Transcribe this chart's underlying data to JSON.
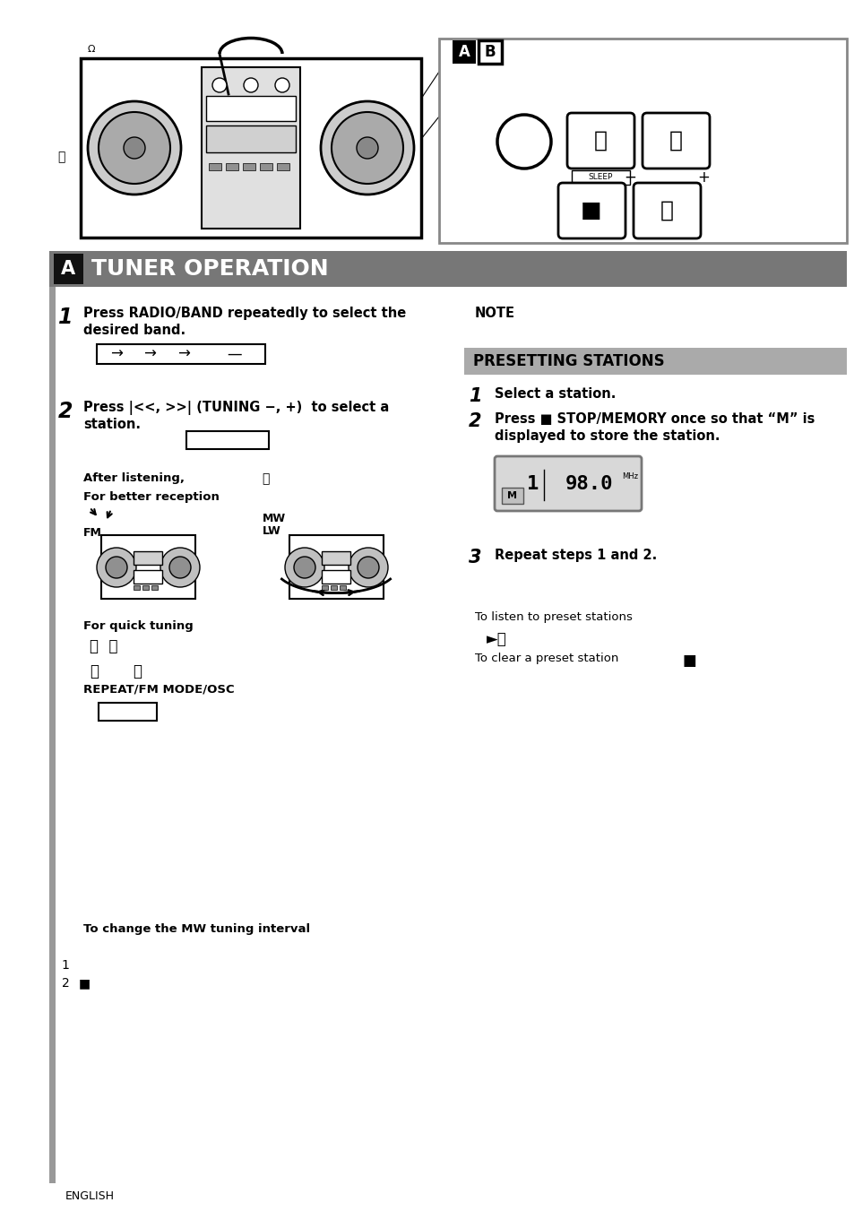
{
  "page_bg": "#ffffff",
  "header_bg": "#777777",
  "header_text": "TUNER OPERATION",
  "header_a_bg": "#111111",
  "preset_header_bg": "#aaaaaa",
  "preset_header_text": "PRESETTING STATIONS",
  "note_label": "NOTE",
  "footer_text": "ENGLISH",
  "step1_line1": "Press RADIO/BAND repeatedly to select the",
  "step1_line2": "desired band.",
  "step2_line1": "Press |<<, >>| (TUNING −, +)  to select a",
  "step2_line2": "station.",
  "after_listening": "After listening,",
  "for_better_reception": "For better reception",
  "fm_label": "FM",
  "mw_lw_label1": "MW",
  "mw_lw_label2": "LW",
  "for_quick_tuning": "For quick tuning",
  "repeat_fm_osc": "REPEAT/FM MODE/OSC",
  "to_change_mw": "To change the MW tuning interval",
  "preset_step1": "Select a station.",
  "preset_step2_1": "Press ■ STOP/MEMORY once so that “M” is",
  "preset_step2_2": "displayed to store the station.",
  "repeat_steps": "Repeat steps 1 and 2.",
  "to_listen": "To listen to preset stations",
  "to_clear": "To clear a preset station",
  "gray_bar": "#999999"
}
